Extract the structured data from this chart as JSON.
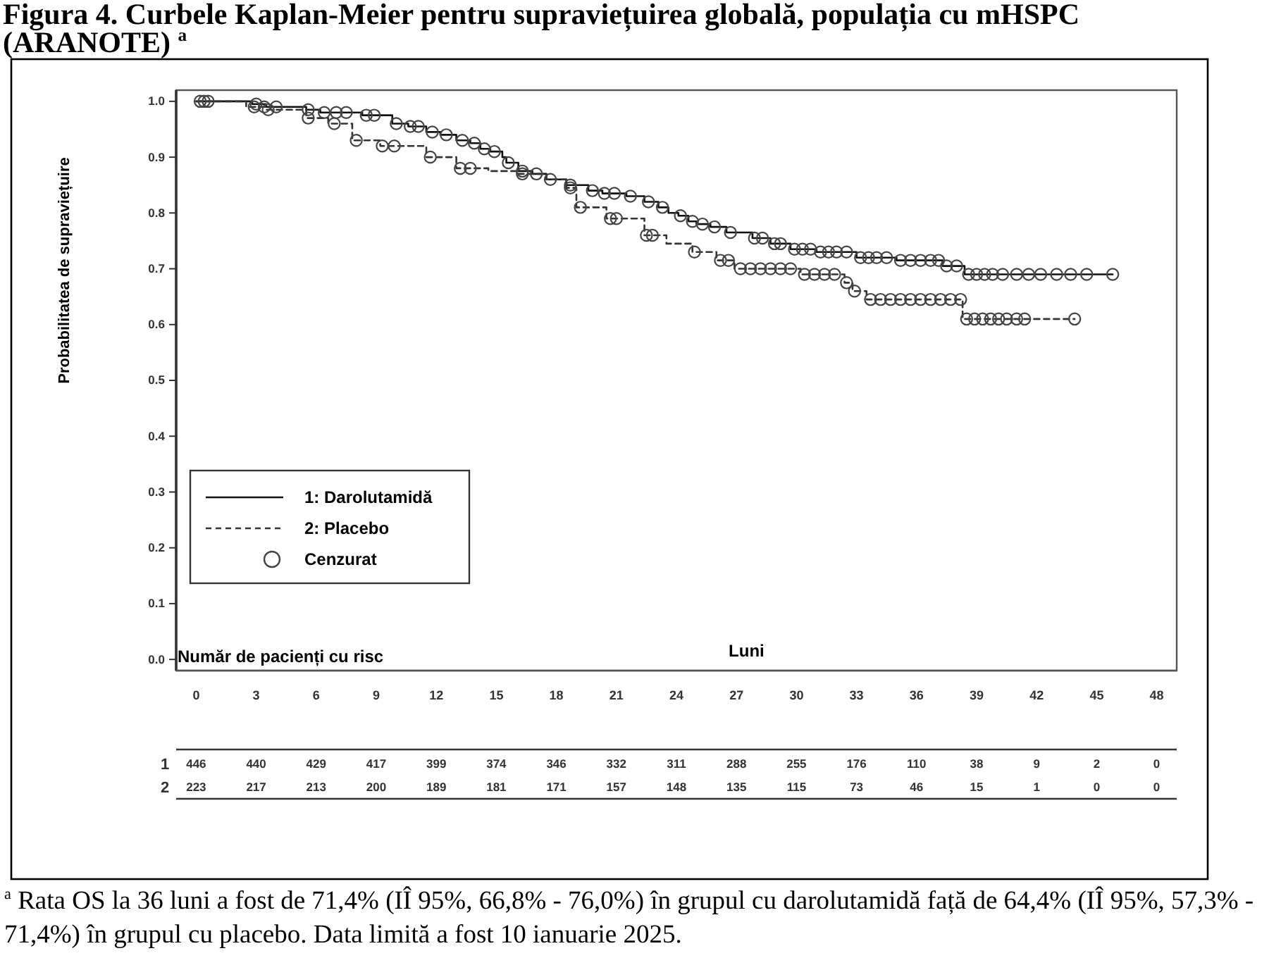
{
  "chart_data": {
    "type": "step",
    "title": "Figura 4. Curbele Kaplan-Meier pentru supraviețuirea globală, populația cu mHSPC (ARANOTE) $^{a}$",
    "xlabel": "Luni",
    "ylabel": "Probabilitatea de supraviețuire",
    "legend": "bottom left",
    "xlim": [
      -1,
      49
    ],
    "xticks": [
      0,
      3,
      6,
      9,
      12,
      15,
      18,
      21,
      24,
      27,
      30,
      33,
      36,
      39,
      42,
      45,
      48
    ],
    "ylim": [
      -0.02,
      1.02
    ],
    "yticks": [
      {
        "value": 0,
        "label": "0.0"
      },
      0.1,
      0.2,
      0.3,
      0.4,
      0.5,
      0.6,
      0.7,
      0.8,
      0.9,
      {
        "value": 1,
        "label": "1.0"
      }
    ],
    "series": [
      {
        "name": "1: Darolutamidă",
        "color": "#111111",
        "line_style": "solid",
        "x": [
          0,
          2.8,
          3.5,
          5.5,
          6.2,
          8.3,
          9.8,
          10.6,
          11.5,
          12.2,
          13,
          13.7,
          14.2,
          14.7,
          15.3,
          15.5,
          16.1,
          16.8,
          17.5,
          18.5,
          19.6,
          20.3,
          21.5,
          22.4,
          23.1,
          23.6,
          24.1,
          24.6,
          25,
          25.7,
          26.5,
          27.8,
          28.7,
          29.7,
          31,
          33,
          35,
          37.3,
          38.4,
          45.8
        ],
        "values": [
          1,
          0.995,
          0.99,
          0.985,
          0.98,
          0.975,
          0.96,
          0.955,
          0.945,
          0.94,
          0.93,
          0.925,
          0.915,
          0.91,
          0.9,
          0.89,
          0.875,
          0.87,
          0.86,
          0.85,
          0.84,
          0.835,
          0.83,
          0.82,
          0.81,
          0.8,
          0.795,
          0.785,
          0.78,
          0.775,
          0.765,
          0.755,
          0.745,
          0.735,
          0.73,
          0.72,
          0.715,
          0.705,
          0.69,
          0.69
        ]
      },
      {
        "name": "2: Placebo",
        "color": "#333333",
        "line_style": "dashed",
        "x": [
          0,
          2.5,
          3.5,
          5.5,
          6.6,
          7.8,
          9.2,
          11.5,
          13,
          14.6,
          16.1,
          17.5,
          18.5,
          19,
          20.5,
          22.4,
          23.5,
          24.8,
          26,
          26.9,
          30.2,
          32.4,
          32.8,
          33.5,
          38.3,
          43.9
        ],
        "values": [
          1,
          0.99,
          0.985,
          0.97,
          0.96,
          0.93,
          0.92,
          0.9,
          0.88,
          0.875,
          0.87,
          0.86,
          0.845,
          0.81,
          0.79,
          0.76,
          0.745,
          0.73,
          0.715,
          0.7,
          0.69,
          0.675,
          0.66,
          0.645,
          0.61,
          0.61
        ]
      },
      {
        "name": "Cenzurat",
        "type": "scatter",
        "marker": "circle",
        "color": "#444444",
        "x": [
          0.2,
          0.6,
          3,
          3.4,
          4,
          5.6,
          6.4,
          7,
          7.5,
          8.5,
          8.9,
          10,
          10.7,
          11.1,
          11.8,
          12.5,
          13.3,
          13.9,
          14.4,
          14.9,
          15.6,
          16.3,
          17,
          17.7,
          18.7,
          19.8,
          20.4,
          20.9,
          21.7,
          22.6,
          23.3,
          24.2,
          24.8,
          25.3,
          25.9,
          26.7,
          27.9,
          28.3,
          28.9,
          29.2,
          29.9,
          30.3,
          30.7,
          31.2,
          31.6,
          32,
          32.5,
          33.2,
          33.6,
          34,
          34.5,
          35.2,
          35.7,
          36.2,
          36.7,
          37.1,
          37.5,
          38,
          38.6,
          39,
          39.4,
          39.8,
          40.3,
          41,
          41.6,
          42.2,
          43,
          43.7,
          44.5,
          45.8,
          0.4,
          2.9,
          3.6,
          5.6,
          6.9,
          8,
          9.3,
          9.9,
          11.7,
          13.2,
          13.7,
          16.3,
          18.7,
          19.2,
          20.7,
          21,
          22.5,
          22.8,
          24.9,
          26.2,
          26.6,
          27.2,
          27.7,
          28.2,
          28.7,
          29.2,
          29.7,
          30.4,
          30.9,
          31.4,
          31.9,
          32.5,
          32.9,
          33.7,
          34.2,
          34.7,
          35.2,
          35.7,
          36.2,
          36.7,
          37.2,
          37.7,
          38.2,
          38.5,
          38.9,
          39.3,
          39.7,
          40.1,
          40.5,
          41,
          41.4,
          43.9
        ],
        "values": [
          1,
          1,
          0.995,
          0.99,
          0.99,
          0.985,
          0.98,
          0.98,
          0.98,
          0.975,
          0.975,
          0.96,
          0.955,
          0.955,
          0.945,
          0.94,
          0.93,
          0.925,
          0.915,
          0.91,
          0.89,
          0.875,
          0.87,
          0.86,
          0.85,
          0.84,
          0.835,
          0.835,
          0.83,
          0.82,
          0.81,
          0.795,
          0.785,
          0.78,
          0.775,
          0.765,
          0.755,
          0.755,
          0.745,
          0.745,
          0.735,
          0.735,
          0.735,
          0.73,
          0.73,
          0.73,
          0.73,
          0.72,
          0.72,
          0.72,
          0.72,
          0.715,
          0.715,
          0.715,
          0.715,
          0.715,
          0.705,
          0.705,
          0.69,
          0.69,
          0.69,
          0.69,
          0.69,
          0.69,
          0.69,
          0.69,
          0.69,
          0.69,
          0.69,
          0.69,
          1,
          0.99,
          0.985,
          0.97,
          0.96,
          0.93,
          0.92,
          0.92,
          0.9,
          0.88,
          0.88,
          0.87,
          0.845,
          0.81,
          0.79,
          0.79,
          0.76,
          0.76,
          0.73,
          0.715,
          0.715,
          0.7,
          0.7,
          0.7,
          0.7,
          0.7,
          0.7,
          0.69,
          0.69,
          0.69,
          0.69,
          0.675,
          0.66,
          0.645,
          0.645,
          0.645,
          0.645,
          0.645,
          0.645,
          0.645,
          0.645,
          0.645,
          0.645,
          0.61,
          0.61,
          0.61,
          0.61,
          0.61,
          0.61,
          0.61,
          0.61,
          0.61
        ]
      }
    ],
    "annotations": [
      "Număr de pacienți cu risc",
      "1",
      "446",
      "440",
      "429",
      "417",
      "399",
      "374",
      "346",
      "332",
      "311",
      "288",
      "255",
      "176",
      "110",
      "38",
      "9",
      "2",
      "0",
      "2",
      "223",
      "217",
      "213",
      "200",
      "189",
      "181",
      "171",
      "157",
      "148",
      "135",
      "115",
      "73",
      "46",
      "15",
      "1",
      "0",
      "0",
      "$^{a}$ Rata OS la 36 luni a fost de 71,4% (IÎ 95%, 66,8% - 76,0%) în grupul cu darolutamidă față de 64,4% (IÎ 95%, 57,3% - 71,4%) în grupul cu placebo. Data limită a fost 10 ianuarie 2025."
    ]
  }
}
